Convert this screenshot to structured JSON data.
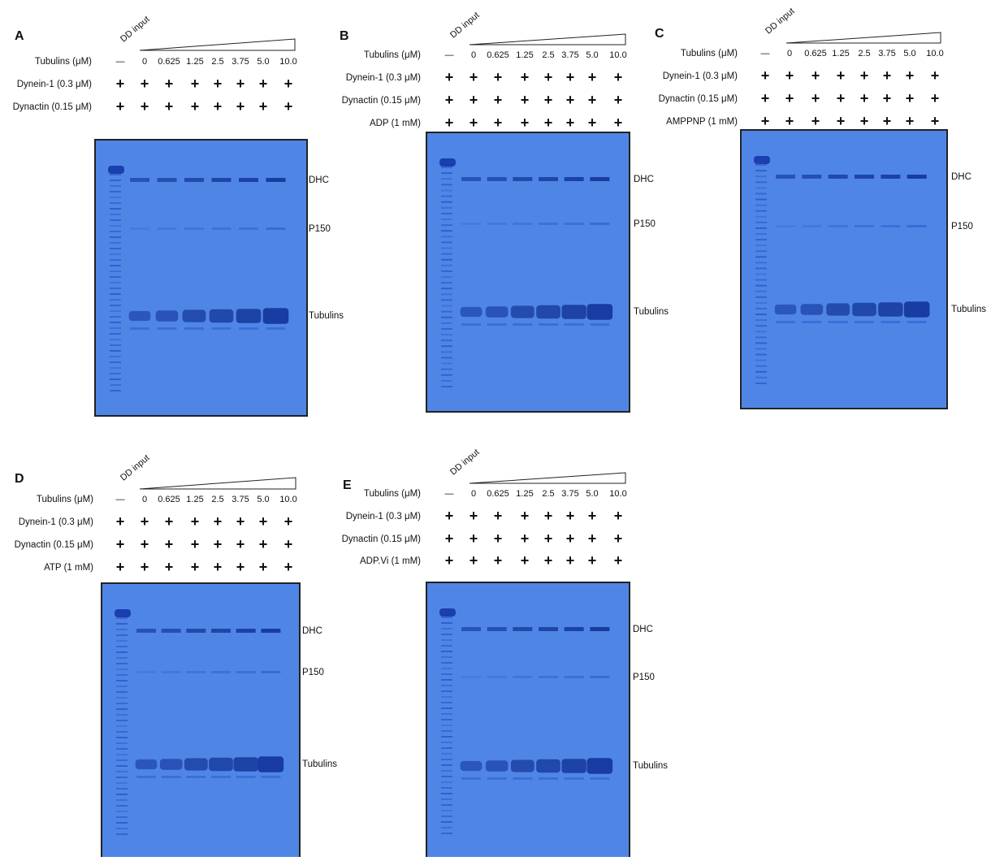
{
  "panels": [
    {
      "letter": "A",
      "input_label": "DD input",
      "rows": [
        {
          "label": "Tubulins (μM)",
          "cells": [
            "—",
            "0",
            "0.625",
            "1.25",
            "2.5",
            "3.75",
            "5.0",
            "10.0"
          ]
        },
        {
          "label": "Dynein-1 (0.3 μM)",
          "cells": [
            "+",
            "+",
            "+",
            "+",
            "+",
            "+",
            "+",
            "+"
          ]
        },
        {
          "label": "Dynactin (0.15 μM)",
          "cells": [
            "+",
            "+",
            "+",
            "+",
            "+",
            "+",
            "+",
            "+"
          ]
        }
      ],
      "bands": [
        "DHC",
        "P150",
        "Tubulins"
      ]
    },
    {
      "letter": "B",
      "input_label": "DD input",
      "rows": [
        {
          "label": "Tubulins (μM)",
          "cells": [
            "—",
            "0",
            "0.625",
            "1.25",
            "2.5",
            "3.75",
            "5.0",
            "10.0"
          ]
        },
        {
          "label": "Dynein-1 (0.3 μM)",
          "cells": [
            "+",
            "+",
            "+",
            "+",
            "+",
            "+",
            "+",
            "+"
          ]
        },
        {
          "label": "Dynactin (0.15 μM)",
          "cells": [
            "+",
            "+",
            "+",
            "+",
            "+",
            "+",
            "+",
            "+"
          ]
        },
        {
          "label": "ADP (1 mM)",
          "cells": [
            "+",
            "+",
            "+",
            "+",
            "+",
            "+",
            "+",
            "+"
          ]
        }
      ],
      "bands": [
        "DHC",
        "P150",
        "Tubulins"
      ]
    },
    {
      "letter": "C",
      "input_label": "DD input",
      "rows": [
        {
          "label": "Tubulins (μM)",
          "cells": [
            "—",
            "0",
            "0.625",
            "1.25",
            "2.5",
            "3.75",
            "5.0",
            "10.0"
          ]
        },
        {
          "label": "Dynein-1 (0.3 μM)",
          "cells": [
            "+",
            "+",
            "+",
            "+",
            "+",
            "+",
            "+",
            "+"
          ]
        },
        {
          "label": "Dynactin (0.15 μM)",
          "cells": [
            "+",
            "+",
            "+",
            "+",
            "+",
            "+",
            "+",
            "+"
          ]
        },
        {
          "label": "AMPPNP (1 mM)",
          "cells": [
            "+",
            "+",
            "+",
            "+",
            "+",
            "+",
            "+",
            "+"
          ]
        }
      ],
      "bands": [
        "DHC",
        "P150",
        "Tubulins"
      ]
    },
    {
      "letter": "D",
      "input_label": "DD input",
      "rows": [
        {
          "label": "Tubulins (μM)",
          "cells": [
            "—",
            "0",
            "0.625",
            "1.25",
            "2.5",
            "3.75",
            "5.0",
            "10.0"
          ]
        },
        {
          "label": "Dynein-1 (0.3 μM)",
          "cells": [
            "+",
            "+",
            "+",
            "+",
            "+",
            "+",
            "+",
            "+"
          ]
        },
        {
          "label": "Dynactin (0.15 μM)",
          "cells": [
            "+",
            "+",
            "+",
            "+",
            "+",
            "+",
            "+",
            "+"
          ]
        },
        {
          "label": "ATP (1 mM)",
          "cells": [
            "+",
            "+",
            "+",
            "+",
            "+",
            "+",
            "+",
            "+"
          ]
        }
      ],
      "bands": [
        "DHC",
        "P150",
        "Tubulins"
      ]
    },
    {
      "letter": "E",
      "input_label": "DD input",
      "rows": [
        {
          "label": "Tubulins (μM)",
          "cells": [
            "—",
            "0",
            "0.625",
            "1.25",
            "2.5",
            "3.75",
            "5.0",
            "10.0"
          ]
        },
        {
          "label": "Dynein-1 (0.3 μM)",
          "cells": [
            "+",
            "+",
            "+",
            "+",
            "+",
            "+",
            "+",
            "+"
          ]
        },
        {
          "label": "Dynactin (0.15 μM)",
          "cells": [
            "+",
            "+",
            "+",
            "+",
            "+",
            "+",
            "+",
            "+"
          ]
        },
        {
          "label": "ADP.Vi (1 mM)",
          "cells": [
            "+",
            "+",
            "+",
            "+",
            "+",
            "+",
            "+",
            "+"
          ]
        }
      ],
      "bands": [
        "DHC",
        "P150",
        "Tubulins"
      ]
    }
  ]
}
